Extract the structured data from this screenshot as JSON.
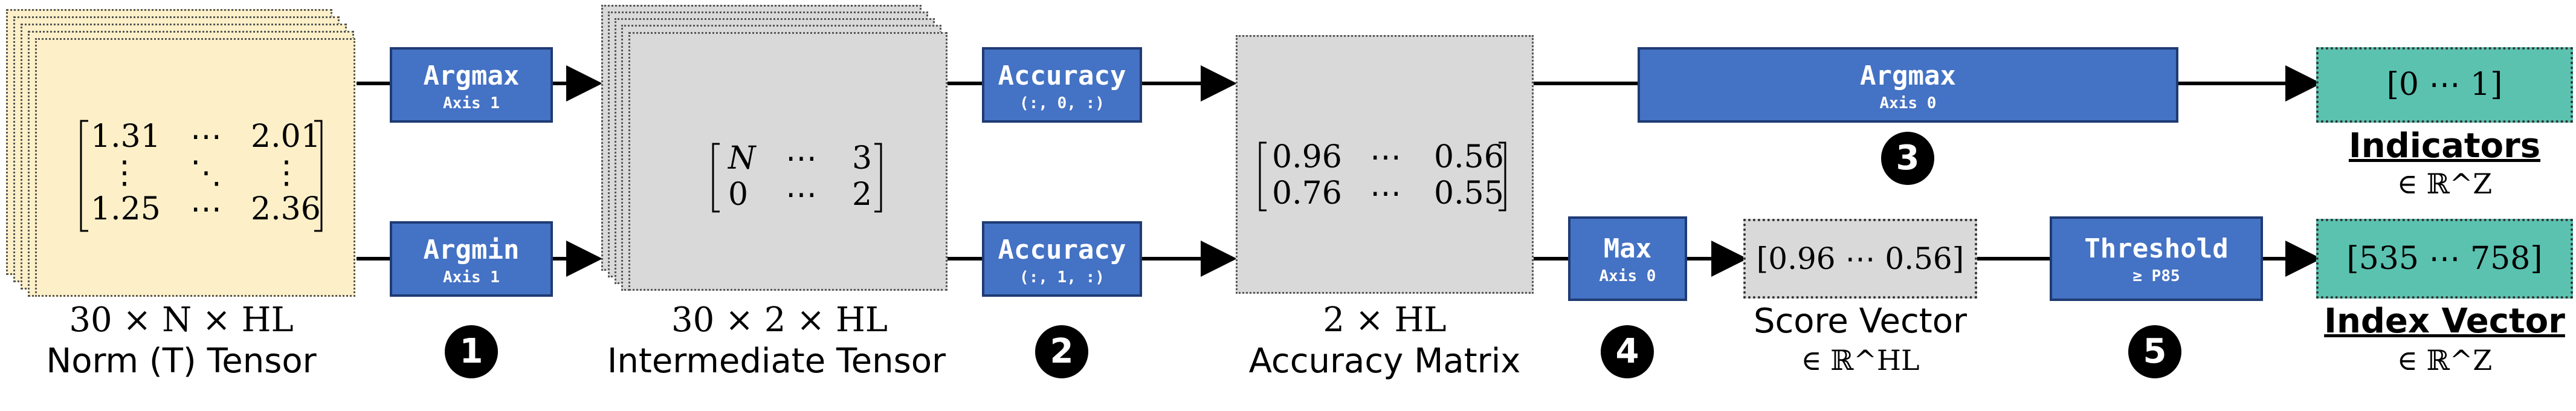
{
  "norm_tensor": {
    "matrix": {
      "r1c1": "1.31",
      "r1c2": "⋯",
      "r1c3": "2.01",
      "r2c1": "⋮",
      "r2c2": "⋱",
      "r2c3": "⋮",
      "r3c1": "1.25",
      "r3c2": "⋯",
      "r3c3": "2.36"
    },
    "shape": "30 × N × HL",
    "label": "Norm (T) Tensor"
  },
  "op_argmax_axis1": {
    "title": "Argmax",
    "sub": "Axis 1"
  },
  "op_argmin_axis1": {
    "title": "Argmin",
    "sub": "Axis 1"
  },
  "intermediate_tensor": {
    "matrix": {
      "r1c1": "N",
      "r1c2": "⋯",
      "r1c3": "3",
      "r2c1": "0",
      "r2c2": "⋯",
      "r2c3": "2"
    },
    "shape": "30 × 2 × HL",
    "label": "Intermediate Tensor"
  },
  "op_accuracy_0": {
    "title": "Accuracy",
    "sub": "(:, 0, :)"
  },
  "op_accuracy_1": {
    "title": "Accuracy",
    "sub": "(:, 1, :)"
  },
  "accuracy_matrix": {
    "matrix": {
      "r1c1": "0.96",
      "r1c2": "⋯",
      "r1c3": "0.56",
      "r2c1": "0.76",
      "r2c2": "⋯",
      "r2c3": "0.55"
    },
    "shape": "2 × HL",
    "label": "Accuracy Matrix"
  },
  "op_argmax_axis0": {
    "title": "Argmax",
    "sub": "Axis 0"
  },
  "op_max_axis0": {
    "title": "Max",
    "sub": "Axis 0"
  },
  "score_vector": {
    "value": "[0.96   ⋯   0.56]",
    "label": "Score Vector",
    "domain": "∈ ℝ^HL"
  },
  "op_threshold": {
    "title": "Threshold",
    "sub": "≥ P85"
  },
  "indicators": {
    "value": "[0   ⋯   1]",
    "label": "Indicators",
    "domain": "∈ ℝ^Z"
  },
  "index_vector": {
    "value": "[535   ⋯   758]",
    "label": "Index Vector",
    "domain": "∈ ℝ^Z"
  },
  "badges": [
    "1",
    "2",
    "3",
    "4",
    "5"
  ]
}
